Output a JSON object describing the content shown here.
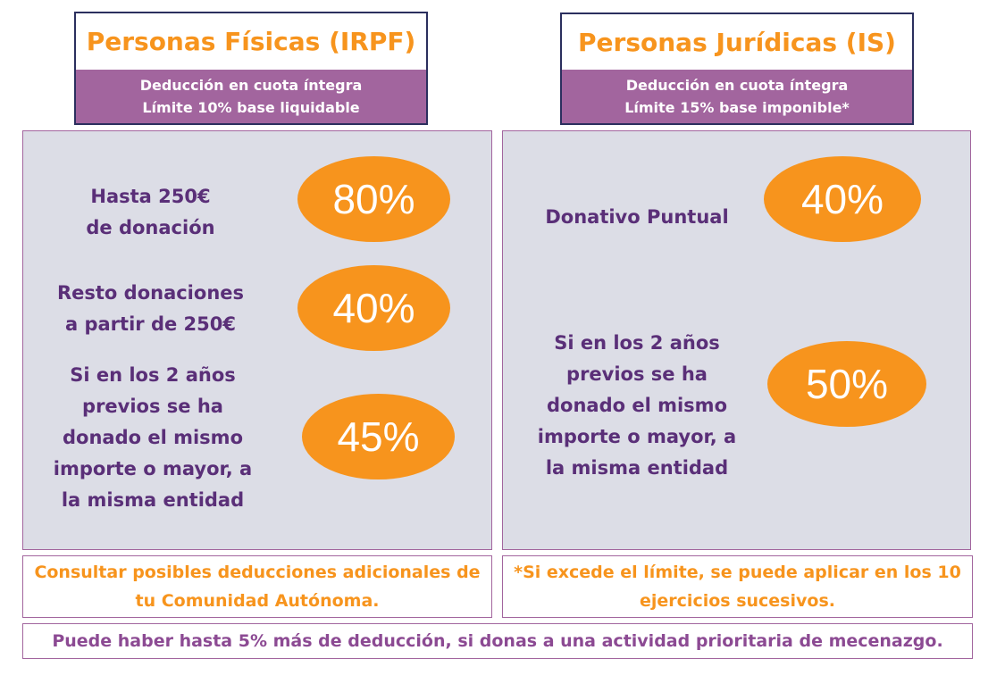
{
  "irpf": {
    "title": "Personas Físicas (IRPF)",
    "sub_line1": "Deducción en cuota íntegra",
    "sub_line2": "Límite 10% base liquidable",
    "rows": [
      {
        "lines": [
          "Hasta 250€",
          "de donación"
        ],
        "pct": "80%"
      },
      {
        "lines": [
          "Resto donaciones",
          "a partir de 250€"
        ],
        "pct": "40%"
      },
      {
        "lines": [
          "Si en los 2 años",
          "previos se ha",
          "donado el mismo",
          "importe o mayor, a",
          "la misma entidad"
        ],
        "pct": "45%"
      }
    ],
    "note_line1": "Consultar posibles deducciones adicionales de",
    "note_line2": "tu Comunidad Autónoma."
  },
  "is": {
    "title": "Personas Jurídicas (IS)",
    "sub_line1": "Deducción en cuota íntegra",
    "sub_line2": "Límite 15% base imponible*",
    "rows": [
      {
        "lines": [
          "Donativo Puntual"
        ],
        "pct": "40%"
      },
      {
        "lines": [
          "Si en los 2 años",
          "previos se ha",
          "donado el mismo",
          "importe o mayor, a",
          "la misma entidad"
        ],
        "pct": "50%"
      }
    ],
    "note_line1": "*Si excede el límite, se puede aplicar en los 10",
    "note_line2": "ejercicios sucesivos."
  },
  "footer": {
    "text": "Puede haber hasta 5% más de deducción, si donas a una actividad prioritaria de mecenazgo."
  },
  "colors": {
    "orange": "#f7941d",
    "purple": "#a2659e",
    "dark_purple": "#5a2f78",
    "panel_bg": "#dcdde6",
    "header_border": "#2b2f5e"
  }
}
